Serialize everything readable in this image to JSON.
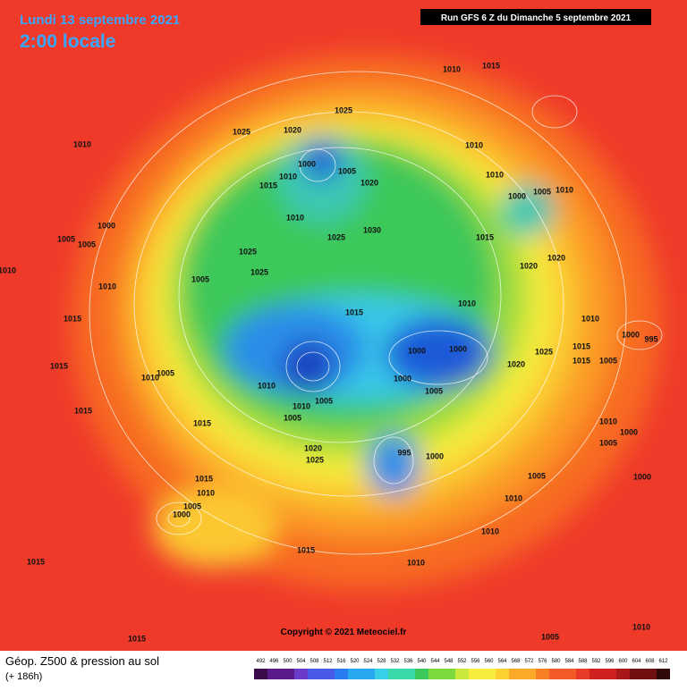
{
  "header": {
    "date": "Lundi 13 septembre 2021",
    "time": "2:00 locale",
    "run": "Run GFS 6 Z du Dimanche 5 septembre 2021"
  },
  "copyright": "Copyright © 2021 Meteociel.fr",
  "legend": {
    "title": "Géop. Z500 & pression au sol",
    "subtitle": "(+ 186h)",
    "ticks": [
      492,
      496,
      500,
      504,
      508,
      512,
      516,
      520,
      524,
      528,
      532,
      536,
      540,
      544,
      548,
      552,
      556,
      560,
      564,
      568,
      572,
      576,
      580,
      584,
      588,
      592,
      596,
      600,
      604,
      608,
      612
    ]
  },
  "pressure_labels": [
    1010,
    1015,
    1025,
    1025,
    1020,
    1010,
    1000,
    1005,
    1015,
    1010,
    1020,
    1010,
    1010,
    1000,
    1005,
    1010,
    1000,
    1005,
    1005,
    1010,
    1025,
    1030,
    1015,
    1025,
    1025,
    1020,
    1020,
    1005,
    1010,
    1010,
    1015,
    1010,
    1010,
    1015,
    1000,
    995,
    1015,
    1015,
    1025,
    1005,
    1000,
    1000,
    1020,
    1000,
    1005,
    1005,
    1010,
    1015,
    1010,
    1005,
    1015,
    1010,
    1005,
    1015,
    1010,
    1005,
    1000,
    1020,
    1025,
    995,
    1000,
    1005,
    1000,
    1015,
    1010,
    1005,
    1000,
    1010,
    1010,
    1015,
    1015,
    1010,
    1015,
    1005,
    1010
  ]
}
